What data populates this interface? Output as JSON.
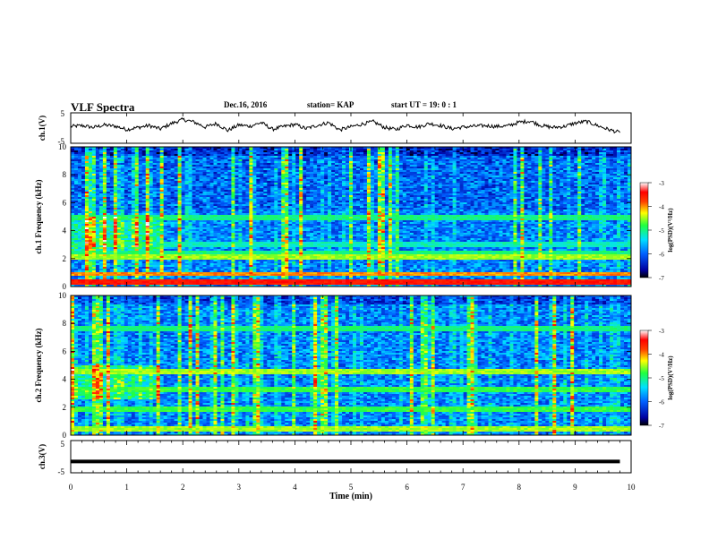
{
  "header": {
    "title": "VLF Spectra",
    "date": "Dec.16, 2016",
    "station": "station= KAP",
    "start": "start UT =  19: 0  : 1"
  },
  "chart_data": [
    {
      "type": "line",
      "panel": "ch1-voltage",
      "ylabel": "ch.1(V)",
      "ylim": [
        -5,
        5
      ],
      "yticks": [
        "5",
        "-5"
      ],
      "xlim": [
        0,
        10
      ],
      "x": [
        0,
        0.2,
        0.4,
        0.6,
        0.8,
        1.0,
        1.2,
        1.4,
        1.6,
        1.8,
        2.0,
        2.2,
        2.4,
        2.6,
        2.8,
        3.0,
        3.2,
        3.4,
        3.6,
        3.8,
        4.0,
        4.2,
        4.4,
        4.6,
        4.8,
        5.0,
        5.2,
        5.4,
        5.6,
        5.8,
        6.0,
        6.2,
        6.4,
        6.6,
        6.8,
        7.0,
        7.2,
        7.4,
        7.6,
        7.8,
        8.0,
        8.2,
        8.4,
        8.6,
        8.8,
        9.0,
        9.2,
        9.4,
        9.6,
        9.8
      ],
      "y": [
        0.5,
        0.8,
        0.2,
        1.0,
        0.6,
        -0.5,
        0.2,
        0.8,
        -0.3,
        1.5,
        2.8,
        2.0,
        0.3,
        1.5,
        -0.8,
        1.0,
        0.6,
        1.8,
        -0.4,
        0.5,
        1.2,
        -0.2,
        0.9,
        1.8,
        -0.6,
        0.4,
        1.3,
        2.1,
        0.2,
        -0.5,
        1.0,
        0.3,
        1.5,
        0.8,
        -0.2,
        0.3,
        0.6,
        0.8,
        0.5,
        0.7,
        1.9,
        2.3,
        0.8,
        0.2,
        0.5,
        1.6,
        2.2,
        0.8,
        -0.5,
        -1.5
      ]
    },
    {
      "type": "heatmap",
      "panel": "ch1-spectrogram",
      "ylabel": "ch.1 Frequency (kHz)",
      "ylim": [
        0,
        10
      ],
      "yticks": [
        "0",
        "2",
        "4",
        "6",
        "8",
        "10"
      ],
      "xlim": [
        0,
        10
      ],
      "colorbar": {
        "label": "log(PSD)(V²/Hz)",
        "range": [
          -7,
          -3
        ],
        "ticks": [
          "-3",
          "-4",
          "-5",
          "-6",
          "-7"
        ]
      },
      "bands": [
        {
          "f": 0.3,
          "level": -3.5
        },
        {
          "f": 0.9,
          "level": -4.0
        },
        {
          "f": 2.1,
          "level": -4.5
        },
        {
          "f": 2.4,
          "level": -5.0
        },
        {
          "f": 3.0,
          "level": -5.2
        },
        {
          "f": 4.9,
          "level": -5.0
        }
      ]
    },
    {
      "type": "heatmap",
      "panel": "ch2-spectrogram",
      "ylabel": "ch.2 Frequency (kHz)",
      "ylim": [
        0,
        10
      ],
      "yticks": [
        "0",
        "2",
        "4",
        "6",
        "8",
        "10"
      ],
      "xlim": [
        0,
        10
      ],
      "colorbar": {
        "label": "log(PSD)(V²/Hz)",
        "range": [
          -7,
          -3
        ],
        "ticks": [
          "-3",
          "-4",
          "-5",
          "-6",
          "-7"
        ]
      },
      "bands": [
        {
          "f": 0.5,
          "level": -4.5
        },
        {
          "f": 1.9,
          "level": -4.8
        },
        {
          "f": 3.3,
          "level": -4.8
        },
        {
          "f": 4.6,
          "level": -4.5
        },
        {
          "f": 7.6,
          "level": -5.0
        }
      ]
    },
    {
      "type": "line",
      "panel": "ch3-voltage",
      "ylabel": "ch.3(V)",
      "ylim": [
        -5,
        5
      ],
      "yticks": [
        "5",
        "-5"
      ],
      "xlim": [
        0,
        10
      ],
      "x": [
        0,
        9.8
      ],
      "y": [
        -1.5,
        -1.5
      ]
    }
  ],
  "xaxis": {
    "label": "Time (min)",
    "ticks": [
      "0",
      "1",
      "2",
      "3",
      "4",
      "5",
      "6",
      "7",
      "8",
      "9",
      "10"
    ]
  },
  "colors": {
    "palette": [
      "#000080",
      "#0000ff",
      "#0080ff",
      "#00e0ff",
      "#40ff80",
      "#c0ff00",
      "#ffff00",
      "#ff8000",
      "#ff0000",
      "#ffffff"
    ]
  }
}
